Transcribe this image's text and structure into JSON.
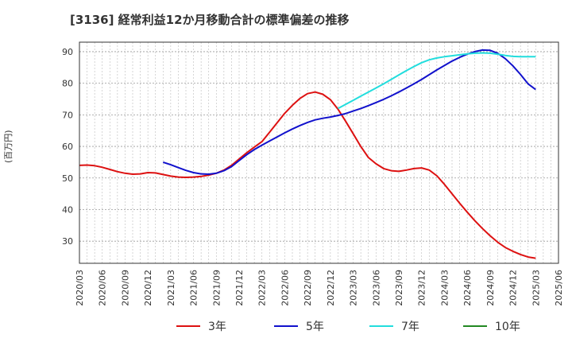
{
  "title": "[3136]  経常利益12か月移動合計の標準偏差の推移",
  "ylabel": "(百万円)",
  "chart_data": {
    "type": "line",
    "title": "[3136]  経常利益12か月移動合計の標準偏差の推移",
    "ylabel": "(百万円)",
    "ylim": [
      23,
      93
    ],
    "yticks": [
      30,
      40,
      50,
      60,
      70,
      80,
      90
    ],
    "xlim": [
      "2020/03",
      "2025/06"
    ],
    "xticks": [
      "2020/03",
      "2020/06",
      "2020/09",
      "2020/12",
      "2021/03",
      "2021/06",
      "2021/09",
      "2021/12",
      "2022/03",
      "2022/06",
      "2022/09",
      "2022/12",
      "2023/03",
      "2023/06",
      "2023/09",
      "2023/12",
      "2024/03",
      "2024/06",
      "2024/09",
      "2024/12",
      "2025/03",
      "2025/06"
    ],
    "grid": true,
    "legend_position": "bottom",
    "series": [
      {
        "name": "3年",
        "color": "#dd1111",
        "points": [
          [
            "2020/03",
            54.0
          ],
          [
            "2020/04",
            54.1
          ],
          [
            "2020/05",
            53.9
          ],
          [
            "2020/06",
            53.4
          ],
          [
            "2020/07",
            52.7
          ],
          [
            "2020/08",
            52.0
          ],
          [
            "2020/09",
            51.5
          ],
          [
            "2020/10",
            51.2
          ],
          [
            "2020/11",
            51.3
          ],
          [
            "2020/12",
            51.7
          ],
          [
            "2021/01",
            51.6
          ],
          [
            "2021/02",
            51.1
          ],
          [
            "2021/03",
            50.6
          ],
          [
            "2021/04",
            50.3
          ],
          [
            "2021/05",
            50.2
          ],
          [
            "2021/06",
            50.3
          ],
          [
            "2021/07",
            50.5
          ],
          [
            "2021/08",
            50.9
          ],
          [
            "2021/09",
            51.5
          ],
          [
            "2021/10",
            52.5
          ],
          [
            "2021/11",
            54.0
          ],
          [
            "2021/12",
            56.0
          ],
          [
            "2022/01",
            58.0
          ],
          [
            "2022/02",
            59.8
          ],
          [
            "2022/03",
            61.5
          ],
          [
            "2022/04",
            64.5
          ],
          [
            "2022/05",
            67.5
          ],
          [
            "2022/06",
            70.5
          ],
          [
            "2022/07",
            73.0
          ],
          [
            "2022/08",
            75.2
          ],
          [
            "2022/09",
            76.7
          ],
          [
            "2022/10",
            77.2
          ],
          [
            "2022/11",
            76.5
          ],
          [
            "2022/12",
            74.8
          ],
          [
            "2023/01",
            71.8
          ],
          [
            "2023/02",
            68.0
          ],
          [
            "2023/03",
            64.0
          ],
          [
            "2023/04",
            60.0
          ],
          [
            "2023/05",
            56.5
          ],
          [
            "2023/06",
            54.5
          ],
          [
            "2023/07",
            53.0
          ],
          [
            "2023/08",
            52.3
          ],
          [
            "2023/09",
            52.1
          ],
          [
            "2023/10",
            52.5
          ],
          [
            "2023/11",
            53.0
          ],
          [
            "2023/12",
            53.2
          ],
          [
            "2024/01",
            52.5
          ],
          [
            "2024/02",
            50.7
          ],
          [
            "2024/03",
            48.0
          ],
          [
            "2024/04",
            45.0
          ],
          [
            "2024/05",
            42.0
          ],
          [
            "2024/06",
            39.2
          ],
          [
            "2024/07",
            36.5
          ],
          [
            "2024/08",
            34.0
          ],
          [
            "2024/09",
            31.7
          ],
          [
            "2024/10",
            29.7
          ],
          [
            "2024/11",
            28.0
          ],
          [
            "2024/12",
            26.8
          ],
          [
            "2025/01",
            25.8
          ],
          [
            "2025/02",
            25.0
          ],
          [
            "2025/03",
            24.6
          ]
        ]
      },
      {
        "name": "5年",
        "color": "#1111cc",
        "points": [
          [
            "2021/02",
            55.0
          ],
          [
            "2021/03",
            54.2
          ],
          [
            "2021/04",
            53.3
          ],
          [
            "2021/05",
            52.4
          ],
          [
            "2021/06",
            51.7
          ],
          [
            "2021/07",
            51.3
          ],
          [
            "2021/08",
            51.2
          ],
          [
            "2021/09",
            51.5
          ],
          [
            "2021/10",
            52.3
          ],
          [
            "2021/11",
            53.6
          ],
          [
            "2021/12",
            55.5
          ],
          [
            "2022/01",
            57.4
          ],
          [
            "2022/02",
            59.0
          ],
          [
            "2022/03",
            60.4
          ],
          [
            "2022/04",
            61.7
          ],
          [
            "2022/05",
            63.0
          ],
          [
            "2022/06",
            64.3
          ],
          [
            "2022/07",
            65.5
          ],
          [
            "2022/08",
            66.6
          ],
          [
            "2022/09",
            67.6
          ],
          [
            "2022/10",
            68.4
          ],
          [
            "2022/11",
            68.9
          ],
          [
            "2022/12",
            69.3
          ],
          [
            "2023/01",
            69.8
          ],
          [
            "2023/02",
            70.4
          ],
          [
            "2023/03",
            71.2
          ],
          [
            "2023/04",
            72.0
          ],
          [
            "2023/05",
            72.9
          ],
          [
            "2023/06",
            73.9
          ],
          [
            "2023/07",
            74.9
          ],
          [
            "2023/08",
            76.0
          ],
          [
            "2023/09",
            77.2
          ],
          [
            "2023/10",
            78.5
          ],
          [
            "2023/11",
            79.8
          ],
          [
            "2023/12",
            81.2
          ],
          [
            "2024/01",
            82.7
          ],
          [
            "2024/02",
            84.2
          ],
          [
            "2024/03",
            85.6
          ],
          [
            "2024/04",
            87.0
          ],
          [
            "2024/05",
            88.2
          ],
          [
            "2024/06",
            89.2
          ],
          [
            "2024/07",
            90.0
          ],
          [
            "2024/08",
            90.5
          ],
          [
            "2024/09",
            90.4
          ],
          [
            "2024/10",
            89.5
          ],
          [
            "2024/11",
            87.8
          ],
          [
            "2024/12",
            85.5
          ],
          [
            "2025/01",
            82.8
          ],
          [
            "2025/02",
            79.8
          ],
          [
            "2025/03",
            78.0
          ]
        ]
      },
      {
        "name": "7年",
        "color": "#22dddd",
        "points": [
          [
            "2023/01",
            72.0
          ],
          [
            "2023/02",
            73.3
          ],
          [
            "2023/03",
            74.6
          ],
          [
            "2023/04",
            75.9
          ],
          [
            "2023/05",
            77.2
          ],
          [
            "2023/06",
            78.5
          ],
          [
            "2023/07",
            79.8
          ],
          [
            "2023/08",
            81.2
          ],
          [
            "2023/09",
            82.6
          ],
          [
            "2023/10",
            84.0
          ],
          [
            "2023/11",
            85.3
          ],
          [
            "2023/12",
            86.5
          ],
          [
            "2024/01",
            87.4
          ],
          [
            "2024/02",
            88.0
          ],
          [
            "2024/03",
            88.4
          ],
          [
            "2024/04",
            88.7
          ],
          [
            "2024/05",
            89.0
          ],
          [
            "2024/06",
            89.3
          ],
          [
            "2024/07",
            89.5
          ],
          [
            "2024/08",
            89.6
          ],
          [
            "2024/09",
            89.5
          ],
          [
            "2024/10",
            89.2
          ],
          [
            "2024/11",
            88.8
          ],
          [
            "2024/12",
            88.5
          ],
          [
            "2025/01",
            88.4
          ],
          [
            "2025/02",
            88.4
          ],
          [
            "2025/03",
            88.4
          ]
        ]
      },
      {
        "name": "10年",
        "color": "#228822",
        "points": []
      }
    ]
  }
}
